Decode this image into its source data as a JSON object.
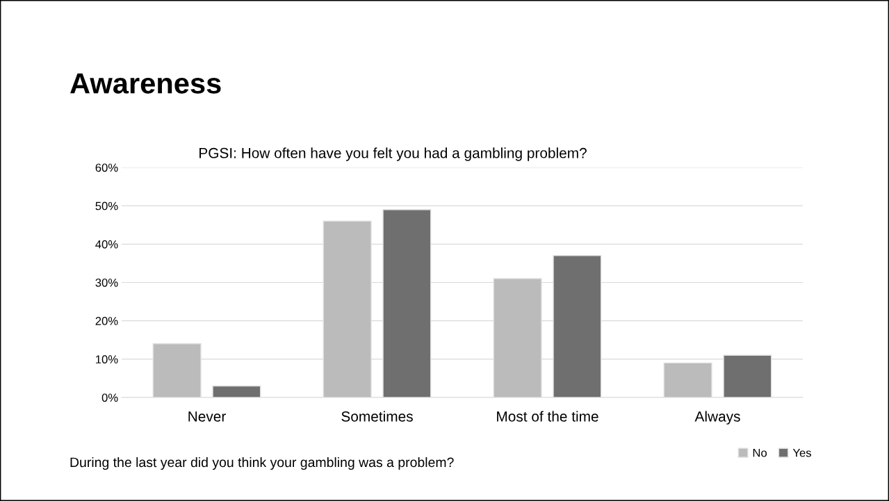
{
  "chart_data": {
    "type": "bar",
    "title": "Awareness",
    "subtitle": "PGSI: How often have you felt you had a gambling problem?",
    "categories": [
      "Never",
      "Sometimes",
      "Most of the time",
      "Always"
    ],
    "series": [
      {
        "name": "No",
        "color": "#bbbbbb",
        "values": [
          14,
          46,
          31,
          9
        ]
      },
      {
        "name": "Yes",
        "color": "#6f6f6f",
        "values": [
          3,
          49,
          37,
          11
        ]
      }
    ],
    "ylim": [
      0,
      60
    ],
    "yticks": [
      {
        "value": 0,
        "label": "0%"
      },
      {
        "value": 10,
        "label": "10%"
      },
      {
        "value": 20,
        "label": "20%"
      },
      {
        "value": 30,
        "label": "30%"
      },
      {
        "value": 40,
        "label": "40%"
      },
      {
        "value": 50,
        "label": "50%"
      },
      {
        "value": 60,
        "label": "60%"
      }
    ],
    "grid": "y",
    "legend": "bottom right",
    "annotations": [
      "During the last year did you think your gambling was a problem?"
    ]
  }
}
